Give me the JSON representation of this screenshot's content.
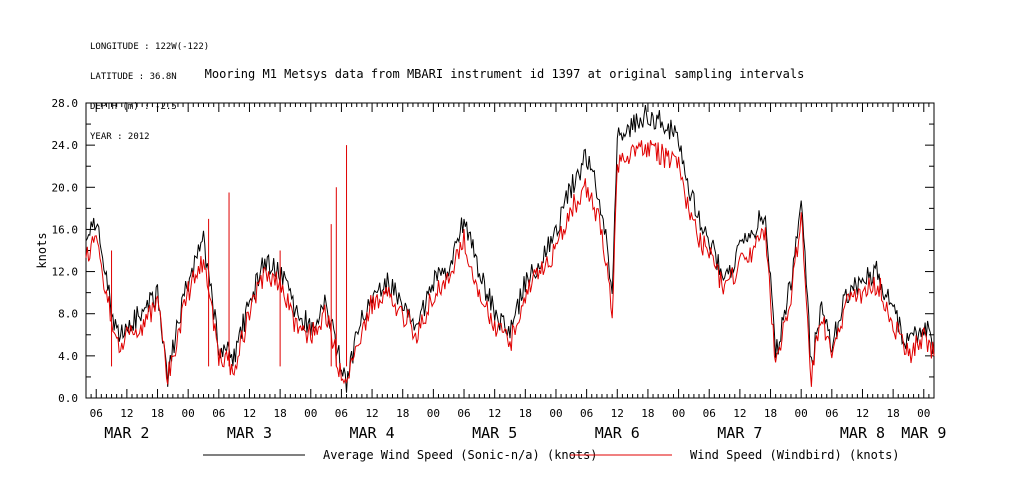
{
  "header": {
    "meta_lines": [
      "LONGITUDE : 122W(-122)",
      "LATITUDE : 36.8N",
      "DEPTH (m) : -2.5",
      "YEAR : 2012"
    ],
    "title": "Mooring M1 Metsys data from MBARI instrument id 1397 at original sampling intervals"
  },
  "chart_data": {
    "type": "line",
    "title": "Mooring M1 Metsys data from MBARI instrument id 1397 at original sampling intervals",
    "ylabel": "knots",
    "xlabel": "",
    "ylim": [
      0,
      28
    ],
    "yticks": [
      0.0,
      4.0,
      8.0,
      12.0,
      16.0,
      20.0,
      24.0,
      28.0
    ],
    "ytick_labels": [
      "0.0",
      "4.0",
      "8.0",
      "12.0",
      "16.0",
      "20.0",
      "24.0",
      "28.0"
    ],
    "x_unit": "hour of 2012-03",
    "xlim": [
      "2012-03-02 04:00",
      "2012-03-09 02:00"
    ],
    "hour_tick_labels": [
      {
        "t": "2012-03-02 06:00",
        "label": "06"
      },
      {
        "t": "2012-03-02 12:00",
        "label": "12"
      },
      {
        "t": "2012-03-02 18:00",
        "label": "18"
      },
      {
        "t": "2012-03-03 00:00",
        "label": "00"
      },
      {
        "t": "2012-03-03 06:00",
        "label": "06"
      },
      {
        "t": "2012-03-03 12:00",
        "label": "12"
      },
      {
        "t": "2012-03-03 18:00",
        "label": "18"
      },
      {
        "t": "2012-03-04 00:00",
        "label": "00"
      },
      {
        "t": "2012-03-04 06:00",
        "label": "06"
      },
      {
        "t": "2012-03-04 12:00",
        "label": "12"
      },
      {
        "t": "2012-03-04 18:00",
        "label": "18"
      },
      {
        "t": "2012-03-05 00:00",
        "label": "00"
      },
      {
        "t": "2012-03-05 06:00",
        "label": "06"
      },
      {
        "t": "2012-03-05 12:00",
        "label": "12"
      },
      {
        "t": "2012-03-05 18:00",
        "label": "18"
      },
      {
        "t": "2012-03-06 00:00",
        "label": "00"
      },
      {
        "t": "2012-03-06 06:00",
        "label": "06"
      },
      {
        "t": "2012-03-06 12:00",
        "label": "12"
      },
      {
        "t": "2012-03-06 18:00",
        "label": "18"
      },
      {
        "t": "2012-03-07 00:00",
        "label": "00"
      },
      {
        "t": "2012-03-07 06:00",
        "label": "06"
      },
      {
        "t": "2012-03-07 12:00",
        "label": "12"
      },
      {
        "t": "2012-03-07 18:00",
        "label": "18"
      },
      {
        "t": "2012-03-08 00:00",
        "label": "00"
      },
      {
        "t": "2012-03-08 06:00",
        "label": "06"
      },
      {
        "t": "2012-03-08 12:00",
        "label": "12"
      },
      {
        "t": "2012-03-08 18:00",
        "label": "18"
      },
      {
        "t": "2012-03-09 00:00",
        "label": "00"
      }
    ],
    "day_labels": [
      {
        "t": "2012-03-02 12:00",
        "label": "MAR  2"
      },
      {
        "t": "2012-03-03 12:00",
        "label": "MAR  3"
      },
      {
        "t": "2012-03-04 12:00",
        "label": "MAR  4"
      },
      {
        "t": "2012-03-05 12:00",
        "label": "MAR  5"
      },
      {
        "t": "2012-03-06 12:00",
        "label": "MAR  6"
      },
      {
        "t": "2012-03-07 12:00",
        "label": "MAR  7"
      },
      {
        "t": "2012-03-08 12:00",
        "label": "MAR  8"
      },
      {
        "t": "2012-03-09 00:00",
        "label": "MAR  9"
      }
    ],
    "grid": false,
    "legend_position": "bottom",
    "series": [
      {
        "name": "Average Wind Speed (Sonic-n/a) (knots)",
        "color": "#000000",
        "x": [
          "2012-03-02 04:00",
          "2012-03-02 05:00",
          "2012-03-02 06:00",
          "2012-03-02 08:00",
          "2012-03-02 10:00",
          "2012-03-02 12:00",
          "2012-03-02 15:00",
          "2012-03-02 18:00",
          "2012-03-02 20:00",
          "2012-03-02 22:00",
          "2012-03-03 00:00",
          "2012-03-03 03:00",
          "2012-03-03 06:00",
          "2012-03-03 09:00",
          "2012-03-03 12:00",
          "2012-03-03 15:00",
          "2012-03-03 18:00",
          "2012-03-03 21:00",
          "2012-03-04 00:00",
          "2012-03-04 03:00",
          "2012-03-04 06:00",
          "2012-03-04 07:00",
          "2012-03-04 09:00",
          "2012-03-04 12:00",
          "2012-03-04 15:00",
          "2012-03-04 18:00",
          "2012-03-04 21:00",
          "2012-03-05 00:00",
          "2012-03-05 03:00",
          "2012-03-05 06:00",
          "2012-03-05 09:00",
          "2012-03-05 12:00",
          "2012-03-05 15:00",
          "2012-03-05 18:00",
          "2012-03-05 21:00",
          "2012-03-06 00:00",
          "2012-03-06 03:00",
          "2012-03-06 06:00",
          "2012-03-06 09:00",
          "2012-03-06 11:00",
          "2012-03-06 12:00",
          "2012-03-06 15:00",
          "2012-03-06 18:00",
          "2012-03-06 21:00",
          "2012-03-07 00:00",
          "2012-03-07 02:00",
          "2012-03-07 04:00",
          "2012-03-07 06:00",
          "2012-03-07 09:00",
          "2012-03-07 12:00",
          "2012-03-07 15:00",
          "2012-03-07 17:00",
          "2012-03-07 19:00",
          "2012-03-07 22:00",
          "2012-03-08 00:00",
          "2012-03-08 02:00",
          "2012-03-08 04:00",
          "2012-03-08 06:00",
          "2012-03-08 09:00",
          "2012-03-08 12:00",
          "2012-03-08 15:00",
          "2012-03-08 18:00",
          "2012-03-08 21:00",
          "2012-03-09 00:00",
          "2012-03-09 02:00"
        ],
        "y": [
          15,
          16,
          17,
          11,
          6,
          7,
          8,
          10,
          2,
          7,
          11,
          15,
          5,
          4,
          9,
          13,
          12,
          8,
          7,
          9,
          3,
          1,
          6,
          10,
          11,
          9,
          7,
          11,
          12,
          17,
          12,
          8,
          6,
          11,
          13,
          16,
          20,
          23,
          18,
          10,
          25,
          26,
          27,
          26,
          25,
          20,
          17,
          15,
          11,
          14,
          16,
          18,
          4,
          11,
          19,
          3,
          9,
          5,
          10,
          11,
          12,
          8,
          5,
          7,
          5
        ]
      },
      {
        "name": "Wind Speed (Windbird) (knots)",
        "color": "#e00000",
        "x": [
          "2012-03-02 04:00",
          "2012-03-02 05:00",
          "2012-03-02 06:00",
          "2012-03-02 08:00",
          "2012-03-02 10:00",
          "2012-03-02 12:00",
          "2012-03-02 15:00",
          "2012-03-02 18:00",
          "2012-03-02 20:00",
          "2012-03-02 22:00",
          "2012-03-03 00:00",
          "2012-03-03 03:00",
          "2012-03-03 06:00",
          "2012-03-03 09:00",
          "2012-03-03 12:00",
          "2012-03-03 15:00",
          "2012-03-03 18:00",
          "2012-03-03 21:00",
          "2012-03-04 00:00",
          "2012-03-04 03:00",
          "2012-03-04 06:00",
          "2012-03-04 07:00",
          "2012-03-04 09:00",
          "2012-03-04 12:00",
          "2012-03-04 15:00",
          "2012-03-04 18:00",
          "2012-03-04 21:00",
          "2012-03-05 00:00",
          "2012-03-05 03:00",
          "2012-03-05 06:00",
          "2012-03-05 09:00",
          "2012-03-05 12:00",
          "2012-03-05 15:00",
          "2012-03-05 18:00",
          "2012-03-05 21:00",
          "2012-03-06 00:00",
          "2012-03-06 03:00",
          "2012-03-06 06:00",
          "2012-03-06 09:00",
          "2012-03-06 11:00",
          "2012-03-06 12:00",
          "2012-03-06 15:00",
          "2012-03-06 18:00",
          "2012-03-06 21:00",
          "2012-03-07 00:00",
          "2012-03-07 02:00",
          "2012-03-07 04:00",
          "2012-03-07 06:00",
          "2012-03-07 09:00",
          "2012-03-07 12:00",
          "2012-03-07 15:00",
          "2012-03-07 17:00",
          "2012-03-07 19:00",
          "2012-03-07 22:00",
          "2012-03-08 00:00",
          "2012-03-08 02:00",
          "2012-03-08 04:00",
          "2012-03-08 06:00",
          "2012-03-08 09:00",
          "2012-03-08 12:00",
          "2012-03-08 15:00",
          "2012-03-08 18:00",
          "2012-03-08 21:00",
          "2012-03-09 00:00",
          "2012-03-09 02:00"
        ],
        "y": [
          13,
          14,
          15,
          10,
          5,
          6,
          7,
          9,
          2,
          6,
          10,
          13,
          4,
          3,
          8,
          12,
          11,
          7,
          6,
          8,
          2,
          1,
          5,
          9,
          10,
          8,
          6,
          10,
          11,
          15,
          10,
          7,
          5,
          10,
          12,
          14,
          18,
          20,
          16,
          8,
          22,
          23,
          24,
          23,
          22,
          18,
          15,
          14,
          10,
          13,
          14,
          16,
          3,
          10,
          17,
          2,
          8,
          4,
          9,
          10,
          11,
          7,
          4,
          6,
          4
        ]
      }
    ],
    "spikes": [
      {
        "t": "2012-03-03 08:00",
        "y": 19.5,
        "color": "#e00000"
      },
      {
        "t": "2012-03-04 07:00",
        "y": 24,
        "color": "#e00000"
      },
      {
        "t": "2012-03-04 05:00",
        "y": 20,
        "color": "#e00000"
      },
      {
        "t": "2012-03-04 04:00",
        "y": 16.5,
        "color": "#e00000"
      },
      {
        "t": "2012-03-03 04:00",
        "y": 17,
        "color": "#e00000"
      },
      {
        "t": "2012-03-02 09:00",
        "y": 14,
        "color": "#e00000"
      },
      {
        "t": "2012-03-03 18:00",
        "y": 14,
        "color": "#e00000"
      }
    ]
  }
}
